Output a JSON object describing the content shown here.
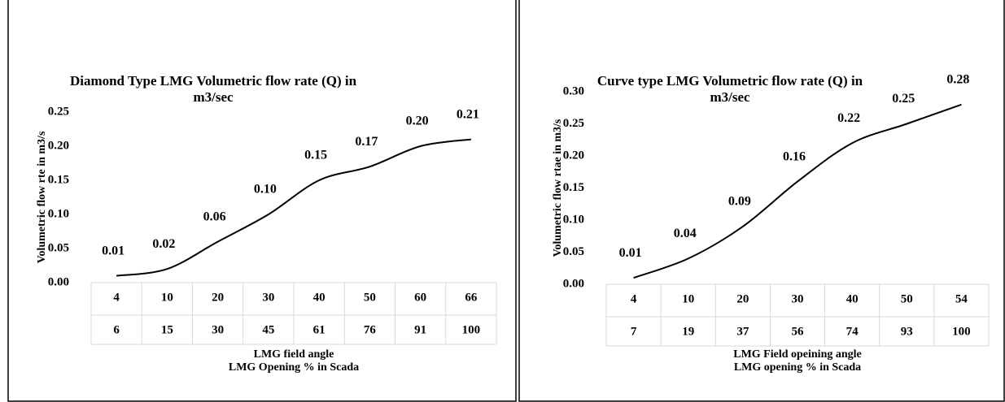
{
  "chart_data": [
    {
      "type": "line",
      "title": [
        "Diamond Type LMG Volumetric flow rate (Q) in",
        "m3/sec"
      ],
      "y_label": "Volumetric flow rte in m3/s",
      "category_levels": [
        {
          "name": "LMG field angle",
          "labels": [
            "4",
            "10",
            "20",
            "30",
            "40",
            "50",
            "60",
            "66"
          ]
        },
        {
          "name": "LMG Opening % in Scada",
          "labels": [
            "6",
            "15",
            "30",
            "45",
            "61",
            "76",
            "91",
            "100"
          ]
        }
      ],
      "values": [
        0.01,
        0.02,
        0.06,
        0.1,
        0.15,
        0.17,
        0.2,
        0.21
      ],
      "value_labels": [
        "0.01",
        "0.02",
        "0.06",
        "0.10",
        "0.15",
        "0.17",
        "0.20",
        "0.21"
      ],
      "color": "#000000",
      "ylim": [
        0,
        0.25
      ],
      "yticks": [
        {
          "value": 0,
          "label": "0.00"
        },
        {
          "value": 0.05,
          "label": "0.05"
        },
        {
          "value": 0.1,
          "label": "0.10"
        },
        {
          "value": 0.15,
          "label": "0.15"
        },
        {
          "value": 0.2,
          "label": "0.20"
        },
        {
          "value": 0.25,
          "label": "0.25"
        }
      ],
      "grid": false
    },
    {
      "type": "line",
      "title": [
        "Curve type LMG Volumetric flow rate (Q) in",
        "m3/sec"
      ],
      "y_label": "Volumetric flow rtae in m3/s",
      "category_levels": [
        {
          "name": "LMG Field opeining angle",
          "labels": [
            "4",
            "10",
            "20",
            "30",
            "40",
            "50",
            "54"
          ]
        },
        {
          "name": "LMG opening % in Scada",
          "labels": [
            "7",
            "19",
            "37",
            "56",
            "74",
            "93",
            "100"
          ]
        }
      ],
      "values": [
        0.01,
        0.04,
        0.09,
        0.16,
        0.22,
        0.25,
        0.28
      ],
      "color": "#000000",
      "ylim": [
        0,
        0.3
      ],
      "yticks": [
        {
          "value": 0,
          "label": "0.00"
        },
        {
          "value": 0.05,
          "label": "0.05"
        },
        {
          "value": 0.1,
          "label": "0.10"
        },
        {
          "value": 0.15,
          "label": "0.15"
        },
        {
          "value": 0.2,
          "label": "0.20"
        },
        {
          "value": 0.25,
          "label": "0.25"
        },
        {
          "value": 0.3,
          "label": "0.30"
        }
      ],
      "grid": false
    }
  ]
}
